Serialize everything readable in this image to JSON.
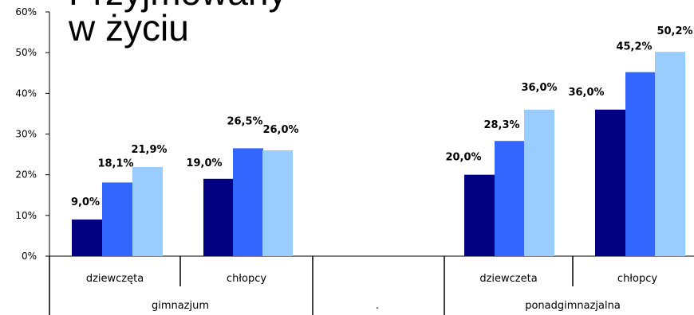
{
  "title": {
    "line1": "Przyjmowany",
    "line2": "w życiu"
  },
  "colors": {
    "series_1": "#000080",
    "series_2": "#3366FF",
    "series_3": "#99CCFF",
    "axis": "#000000"
  },
  "chart_data": {
    "type": "bar",
    "title": "w życiu",
    "ylim": [
      0,
      60
    ],
    "y_ticks": [
      "0%",
      "10%",
      "20%",
      "30%",
      "40%",
      "50%",
      "60%"
    ],
    "groups": [
      {
        "label": "gimnazjum",
        "categories": [
          "dziewczęta",
          "chłopcy"
        ]
      },
      {
        "label": ".",
        "categories": [
          ""
        ]
      },
      {
        "label": "ponadgimnazjalna",
        "categories": [
          "dziewczeta",
          "chłopcy"
        ]
      }
    ],
    "categories": [
      "dziewczęta",
      "chłopcy",
      "",
      "dziewczeta",
      "chłopcy"
    ],
    "series": [
      {
        "values": [
          9.0,
          19.0,
          null,
          20.0,
          36.0
        ],
        "labels": [
          "9,0%",
          "19,0%",
          "",
          "20,0%",
          "36,0%"
        ]
      },
      {
        "values": [
          18.1,
          26.5,
          null,
          28.3,
          45.2
        ],
        "labels": [
          "18,1%",
          "26,5%",
          "",
          "28,3%",
          "45,2%"
        ]
      },
      {
        "values": [
          21.9,
          26.0,
          null,
          36.0,
          50.2
        ],
        "labels": [
          "21,9%",
          "26,0%",
          "",
          "36,0%",
          "50,2%"
        ]
      }
    ],
    "grid": false,
    "legend": "none"
  }
}
